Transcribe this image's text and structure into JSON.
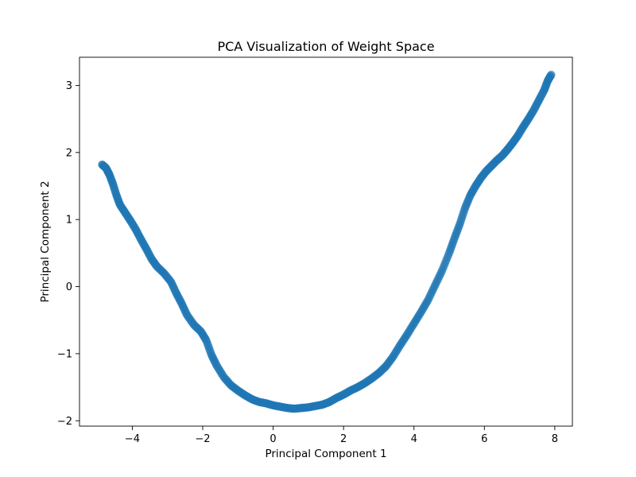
{
  "chart_data": {
    "type": "scatter",
    "title": "PCA Visualization of Weight Space",
    "xlabel": "Principal Component 1",
    "ylabel": "Principal Component 2",
    "xlim": [
      -5.5,
      8.5
    ],
    "ylim": [
      -2.08,
      3.42
    ],
    "xticks": [
      -4,
      -2,
      0,
      2,
      4,
      6,
      8
    ],
    "yticks": [
      -2,
      -1,
      0,
      1,
      2,
      3
    ],
    "tick_labels_x": [
      "−4",
      "−2",
      "0",
      "2",
      "4",
      "6",
      "8"
    ],
    "tick_labels_y": [
      "−2",
      "−1",
      "0",
      "1",
      "2",
      "3"
    ],
    "grid": false,
    "legend": "none",
    "marker_color": "#1f77b4",
    "series": [
      {
        "points": [
          [
            -4.86,
            1.82
          ],
          [
            -4.75,
            1.77
          ],
          [
            -4.65,
            1.67
          ],
          [
            -4.55,
            1.53
          ],
          [
            -4.45,
            1.36
          ],
          [
            -4.35,
            1.22
          ],
          [
            -4.2,
            1.1
          ],
          [
            -4.05,
            0.98
          ],
          [
            -3.9,
            0.85
          ],
          [
            -3.75,
            0.7
          ],
          [
            -3.6,
            0.56
          ],
          [
            -3.45,
            0.41
          ],
          [
            -3.3,
            0.3
          ],
          [
            -3.1,
            0.2
          ],
          [
            -2.9,
            0.07
          ],
          [
            -2.75,
            -0.1
          ],
          [
            -2.6,
            -0.25
          ],
          [
            -2.45,
            -0.42
          ],
          [
            -2.25,
            -0.57
          ],
          [
            -2.05,
            -0.67
          ],
          [
            -1.9,
            -0.8
          ],
          [
            -1.75,
            -1.02
          ],
          [
            -1.6,
            -1.18
          ],
          [
            -1.4,
            -1.35
          ],
          [
            -1.2,
            -1.47
          ],
          [
            -1.0,
            -1.55
          ],
          [
            -0.8,
            -1.62
          ],
          [
            -0.6,
            -1.68
          ],
          [
            -0.4,
            -1.72
          ],
          [
            -0.2,
            -1.74
          ],
          [
            0.0,
            -1.77
          ],
          [
            0.2,
            -1.79
          ],
          [
            0.4,
            -1.81
          ],
          [
            0.6,
            -1.82
          ],
          [
            0.8,
            -1.81
          ],
          [
            1.0,
            -1.8
          ],
          [
            1.2,
            -1.78
          ],
          [
            1.4,
            -1.76
          ],
          [
            1.6,
            -1.72
          ],
          [
            1.8,
            -1.66
          ],
          [
            2.0,
            -1.61
          ],
          [
            2.2,
            -1.55
          ],
          [
            2.4,
            -1.5
          ],
          [
            2.6,
            -1.44
          ],
          [
            2.8,
            -1.37
          ],
          [
            3.0,
            -1.29
          ],
          [
            3.2,
            -1.19
          ],
          [
            3.4,
            -1.05
          ],
          [
            3.6,
            -0.88
          ],
          [
            3.8,
            -0.72
          ],
          [
            4.0,
            -0.55
          ],
          [
            4.2,
            -0.38
          ],
          [
            4.4,
            -0.2
          ],
          [
            4.6,
            0.02
          ],
          [
            4.8,
            0.24
          ],
          [
            5.0,
            0.5
          ],
          [
            5.15,
            0.72
          ],
          [
            5.3,
            0.93
          ],
          [
            5.45,
            1.17
          ],
          [
            5.6,
            1.36
          ],
          [
            5.75,
            1.5
          ],
          [
            5.9,
            1.62
          ],
          [
            6.05,
            1.72
          ],
          [
            6.2,
            1.8
          ],
          [
            6.35,
            1.88
          ],
          [
            6.5,
            1.95
          ],
          [
            6.65,
            2.04
          ],
          [
            6.8,
            2.14
          ],
          [
            6.95,
            2.25
          ],
          [
            7.1,
            2.38
          ],
          [
            7.25,
            2.5
          ],
          [
            7.4,
            2.63
          ],
          [
            7.55,
            2.78
          ],
          [
            7.7,
            2.93
          ],
          [
            7.8,
            3.07
          ],
          [
            7.9,
            3.16
          ]
        ]
      }
    ]
  }
}
